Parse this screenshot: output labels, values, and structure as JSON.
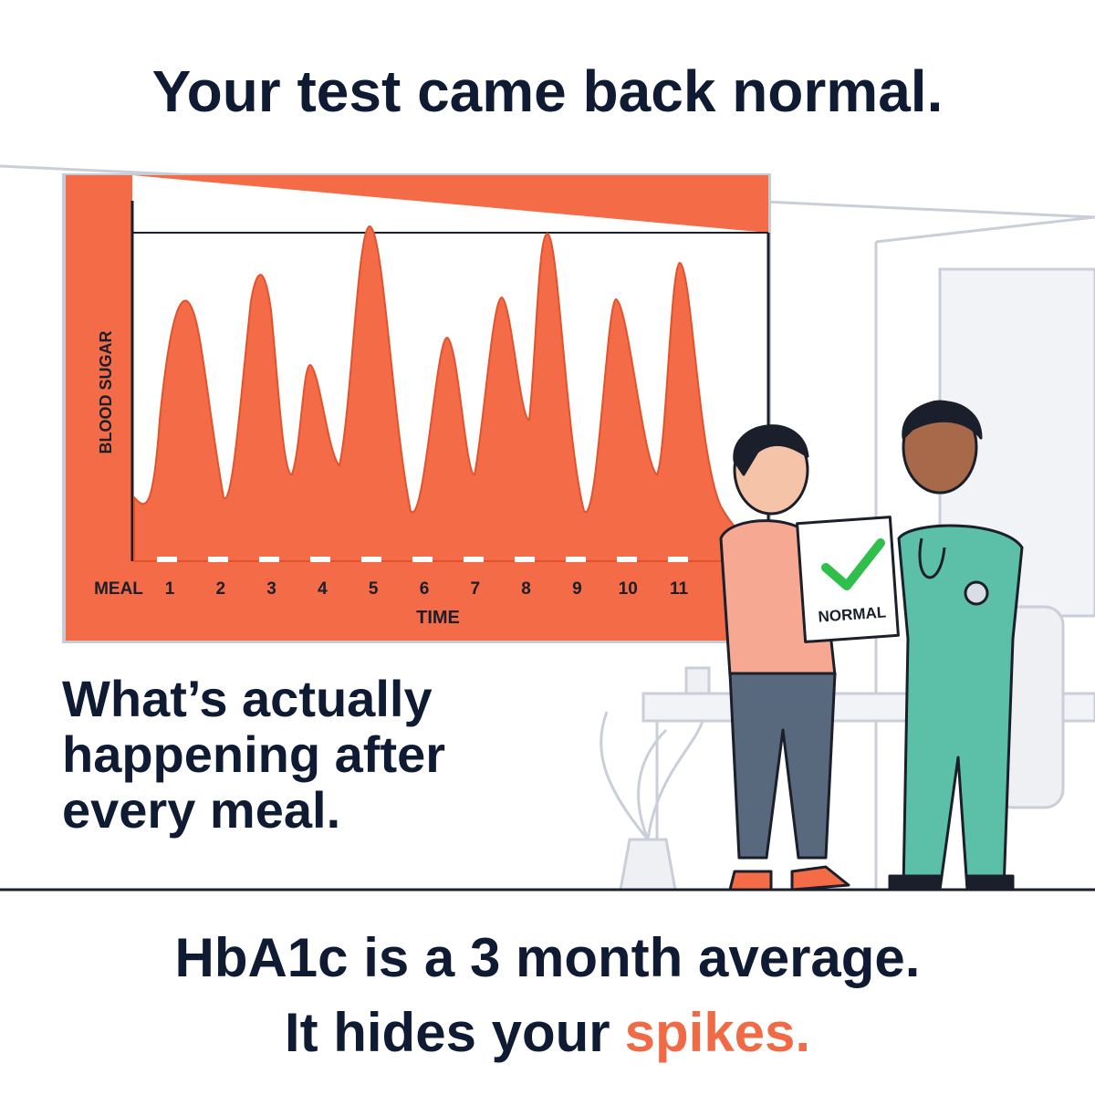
{
  "header": {
    "title": "Your test came back normal."
  },
  "chart": {
    "y_label": "BLOOD SUGAR",
    "x_label": "TIME",
    "meal_label": "MEAL",
    "meals": [
      1,
      2,
      3,
      4,
      5,
      6,
      7,
      8,
      9,
      10,
      11
    ]
  },
  "sign": {
    "label": "NORMAL"
  },
  "middle": {
    "lines": [
      "What’s actually",
      "happening after",
      "every meal."
    ]
  },
  "bottom": {
    "line1": "HbA1c is a 3 month average.",
    "line2": "It hides your",
    "highlight": "spikes."
  }
}
